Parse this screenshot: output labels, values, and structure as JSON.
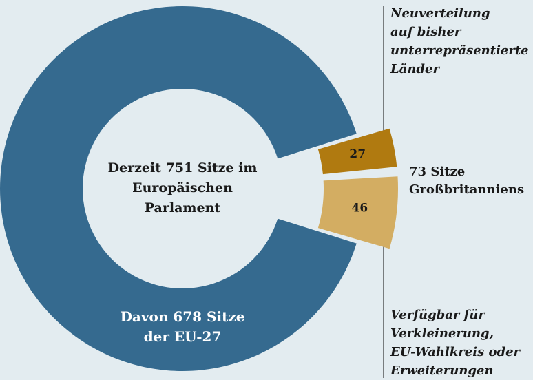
{
  "chart_data": {
    "type": "donut",
    "center_label": "Derzeit 751 Sitze im\nEuropäischen\nParlament",
    "group_label": "73 Sitze\nGroßbritanniens",
    "categories": [
      "Davon 678 Sitze\nder EU-27",
      "Neuverteilung\nauf bisher\nunterrepräsentierte\nLänder",
      "Verfügbar für\nVerkleinerung,\nEU-Wahlkreis oder\nErweiterungen"
    ],
    "values": [
      678,
      27,
      46
    ],
    "colors": [
      "#356a8f",
      "#b07a10",
      "#d3ad62"
    ]
  }
}
